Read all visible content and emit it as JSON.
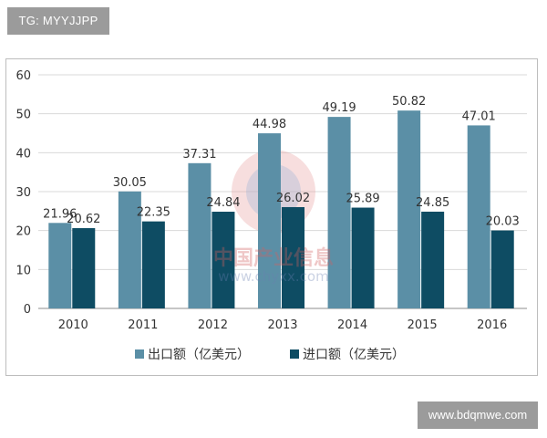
{
  "tags": {
    "top": "TG: MYYJJPP",
    "bottom": "www.bdqmwe.com"
  },
  "watermark": {
    "text": "中国产业信息",
    "url": "www.chyxx.com"
  },
  "chart_data": {
    "type": "bar",
    "categories": [
      "2010",
      "2011",
      "2012",
      "2013",
      "2014",
      "2015",
      "2016"
    ],
    "series": [
      {
        "name": "出口额（亿美元）",
        "color": "#5b8fa6",
        "values": [
          21.96,
          30.05,
          37.31,
          44.98,
          49.19,
          50.82,
          47.01
        ]
      },
      {
        "name": "进口额（亿美元）",
        "color": "#0e4c63",
        "values": [
          20.62,
          22.35,
          24.84,
          26.02,
          25.89,
          24.85,
          20.03
        ]
      }
    ],
    "ylim": [
      0,
      60
    ],
    "yticks": [
      0,
      10,
      20,
      30,
      40,
      50,
      60
    ],
    "grid": true,
    "legend": "bottom",
    "data_labels": true
  }
}
